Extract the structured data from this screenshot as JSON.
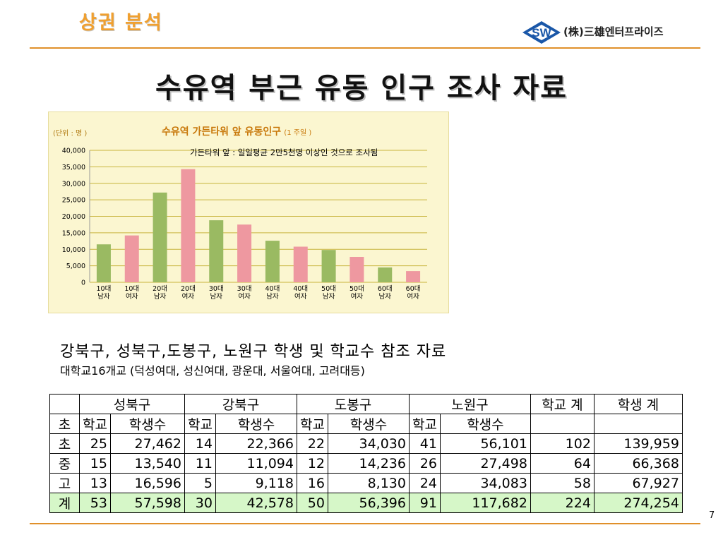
{
  "header": {
    "title": "상권 분석",
    "company": "(株)三雄엔터프라이즈",
    "logo_text": "SW"
  },
  "main_title": "수유역 부근 유동 인구 조사 자료",
  "chart_data": {
    "type": "bar",
    "title": "수유역 가든타워  앞 유동인구",
    "title_note": "(1 주일 )",
    "unit_label": "(단위 : 명 )",
    "annotation": "가든타워 앞 : 일일평균 2만5천명 이상인 것으로 조사됨",
    "categories": [
      [
        "10대",
        "남자"
      ],
      [
        "10대",
        "여자"
      ],
      [
        "20대",
        "남자"
      ],
      [
        "20대",
        "여자"
      ],
      [
        "30대",
        "남자"
      ],
      [
        "30대",
        "여자"
      ],
      [
        "40대",
        "남자"
      ],
      [
        "40대",
        "여자"
      ],
      [
        "50대",
        "남자"
      ],
      [
        "50대",
        "여자"
      ],
      [
        "60대",
        "남자"
      ],
      [
        "60대",
        "여자"
      ]
    ],
    "values": [
      11500,
      14200,
      27200,
      34300,
      18800,
      17500,
      12600,
      10800,
      9800,
      7700,
      4500,
      3400
    ],
    "colors": [
      "#9aba62",
      "#ee98a0",
      "#9aba62",
      "#ee98a0",
      "#9aba62",
      "#ee98a0",
      "#9aba62",
      "#ee98a0",
      "#9aba62",
      "#ee98a0",
      "#9aba62",
      "#ee98a0"
    ],
    "ylim": [
      0,
      40000
    ],
    "yticks": [
      "0",
      "5,000",
      "10,000",
      "15,000",
      "20,000",
      "25,000",
      "30,000",
      "35,000",
      "40,000"
    ],
    "grid": true,
    "legend": "none"
  },
  "captions": {
    "line1": "강북구, 성북구,도봉구, 노원구 학생 및 학교수 참조 자료",
    "line2": "대학교16개교 (덕성여대, 성신여대, 광운대, 서울여대, 고려대등)"
  },
  "table": {
    "districts": [
      "성북구",
      "강북구",
      "도봉구",
      "노원구"
    ],
    "school_total_header": "학교 계",
    "student_total_header": "학생 계",
    "sub_first": "초",
    "sub_school": "학교",
    "sub_student": "학생수",
    "rows": [
      {
        "label": "초",
        "c": [
          "25",
          "27,462",
          "14",
          "22,366",
          "22",
          "34,030",
          "41",
          "56,101",
          "102",
          "139,959"
        ]
      },
      {
        "label": "중",
        "c": [
          "15",
          "13,540",
          "11",
          "11,094",
          "12",
          "14,236",
          "26",
          "27,498",
          "64",
          "66,368"
        ]
      },
      {
        "label": "고",
        "c": [
          "13",
          "16,596",
          "5",
          "9,118",
          "16",
          "8,130",
          "24",
          "34,083",
          "58",
          "67,927"
        ]
      },
      {
        "label": "계",
        "c": [
          "53",
          "57,598",
          "30",
          "42,578",
          "50",
          "56,396",
          "91",
          "117,682",
          "224",
          "274,254"
        ]
      }
    ]
  },
  "page_number": "7"
}
